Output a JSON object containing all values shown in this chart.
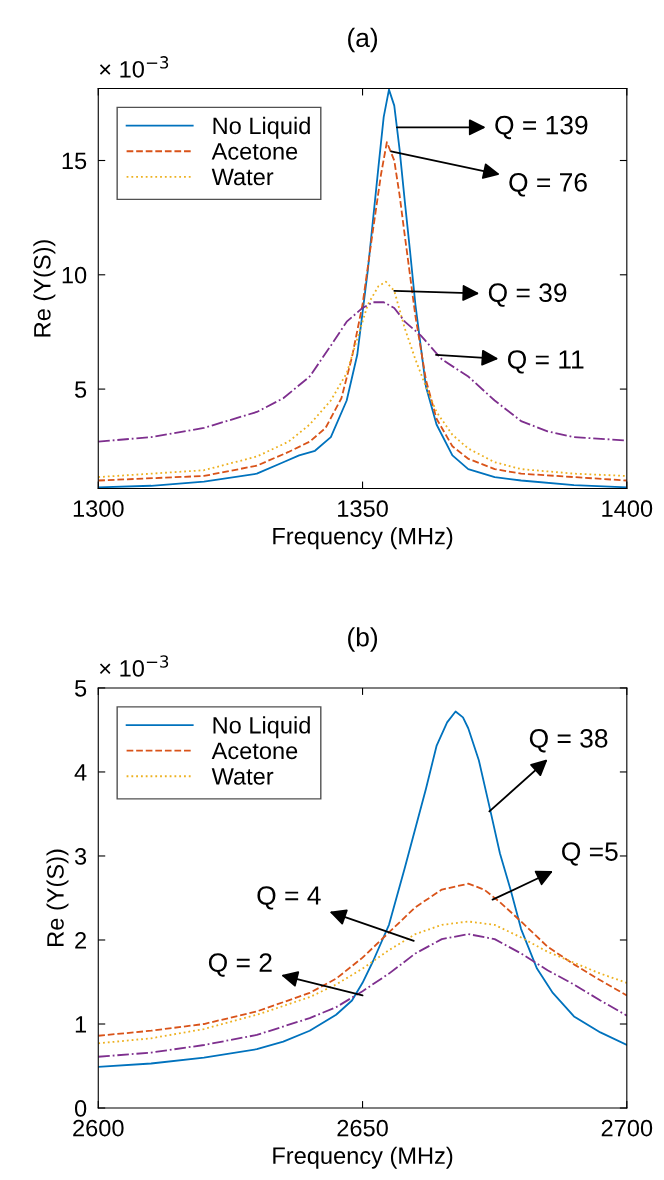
{
  "chart_data": [
    {
      "type": "line",
      "title": "(a)",
      "xlabel": "Frequency (MHz)",
      "ylabel": "Re (Y(S))",
      "xlim": [
        1300,
        1400
      ],
      "xticks": [
        1300,
        1350,
        1400
      ],
      "ylim": [
        0.65,
        18.15
      ],
      "yticks": [
        5,
        10,
        15
      ],
      "grid": false,
      "legend": "top left",
      "marker": "none",
      "annotations": [
        "× 10$^{−3}$",
        {
          "text": "Q = 139",
          "x": 1356.5,
          "y": 16.45
        },
        {
          "text": "Q = 76",
          "x": 1355.4,
          "y": 15.4
        },
        {
          "text": "Q = 39",
          "x": 1356,
          "y": 9.3
        },
        {
          "text": "Q = 11",
          "x": 1363.9,
          "y": 6.5
        }
      ],
      "series": [
        {
          "name": "No Liquid",
          "color": "#0072bd",
          "line_style": "solid",
          "x": [
            1300,
            1310,
            1320,
            1330,
            1335,
            1338,
            1341,
            1344,
            1347,
            1349,
            1351,
            1353,
            1354,
            1355,
            1356,
            1357,
            1358,
            1359,
            1360,
            1362,
            1364,
            1367,
            1370,
            1375,
            1380,
            1390,
            1400
          ],
          "values": [
            0.7,
            0.77,
            0.95,
            1.3,
            1.8,
            2.1,
            2.3,
            2.9,
            4.5,
            6.5,
            10.2,
            14.7,
            16.9,
            18.1,
            17.4,
            15.5,
            13.2,
            11.0,
            8.7,
            5.1,
            3.45,
            2.1,
            1.5,
            1.15,
            1.0,
            0.8,
            0.7
          ]
        },
        {
          "name": "Acetone",
          "color": "#d95319",
          "line_style": "dashed",
          "x": [
            1300,
            1320,
            1330,
            1336,
            1340,
            1343,
            1346,
            1348,
            1350,
            1352,
            1353.5,
            1354.6,
            1356,
            1357,
            1358,
            1360,
            1362,
            1364,
            1367,
            1370,
            1375,
            1380,
            1390,
            1400
          ],
          "values": [
            1.0,
            1.2,
            1.65,
            2.25,
            2.7,
            3.3,
            4.6,
            6.4,
            8.7,
            12.0,
            14.4,
            15.8,
            15.0,
            13.5,
            11.7,
            8.2,
            5.4,
            3.7,
            2.5,
            1.95,
            1.5,
            1.3,
            1.15,
            1.0
          ]
        },
        {
          "name": "Water",
          "color": "#edb120",
          "line_style": "dotted",
          "x": [
            1300,
            1320,
            1330,
            1336,
            1340,
            1344,
            1347,
            1349,
            1351,
            1353,
            1354.4,
            1356,
            1358,
            1360,
            1362,
            1364,
            1367,
            1370,
            1375,
            1380,
            1390,
            1400
          ],
          "values": [
            1.15,
            1.45,
            2.05,
            2.7,
            3.45,
            4.5,
            5.7,
            7.2,
            8.7,
            9.5,
            9.7,
            9.3,
            7.65,
            6.3,
            5.1,
            4.0,
            3.0,
            2.4,
            1.8,
            1.5,
            1.3,
            1.2
          ]
        },
        {
          "color": "#7e2f8e",
          "line_style": "dashdot",
          "x": [
            1300,
            1310,
            1320,
            1330,
            1335,
            1340,
            1344,
            1347,
            1350,
            1352,
            1354,
            1356,
            1358,
            1361,
            1365,
            1370,
            1375,
            1380,
            1385,
            1390,
            1400
          ],
          "values": [
            2.7,
            2.9,
            3.3,
            4.0,
            4.6,
            5.55,
            6.9,
            7.95,
            8.55,
            8.8,
            8.8,
            8.55,
            7.95,
            7.35,
            6.3,
            5.55,
            4.5,
            3.6,
            3.15,
            2.9,
            2.75
          ]
        }
      ]
    },
    {
      "type": "line",
      "title": "(b)",
      "xlabel": "Frequency (MHz)",
      "ylabel": "Re (Y(S))",
      "xlim": [
        2600,
        2700
      ],
      "xticks": [
        2600,
        2650,
        2700
      ],
      "ylim": [
        0,
        5
      ],
      "yticks": [
        0,
        1,
        2,
        3,
        4,
        5
      ],
      "grid": false,
      "legend": "top left",
      "marker": "none",
      "annotations": [
        "× 10$^{−3}$",
        {
          "text": "Q = 38",
          "x": 2674,
          "y": 3.53
        },
        {
          "text": "Q =5",
          "x": 2674.6,
          "y": 2.48
        },
        {
          "text": "Q = 4",
          "x": 2659.7,
          "y": 1.99
        },
        {
          "text": "Q = 2",
          "x": 2650,
          "y": 1.34
        }
      ],
      "series": [
        {
          "name": "No Liquid",
          "color": "#0072bd",
          "line_style": "solid",
          "x": [
            2600,
            2610,
            2620,
            2630,
            2635,
            2640,
            2645,
            2648,
            2650,
            2652,
            2655,
            2658,
            2660,
            2662,
            2664,
            2666,
            2667.6,
            2669,
            2670,
            2672,
            2674,
            2676,
            2678,
            2680,
            2683,
            2686,
            2690,
            2695,
            2700
          ],
          "values": [
            0.49,
            0.53,
            0.6,
            0.7,
            0.79,
            0.92,
            1.11,
            1.28,
            1.49,
            1.75,
            2.18,
            2.86,
            3.33,
            3.8,
            4.31,
            4.59,
            4.72,
            4.65,
            4.52,
            4.14,
            3.59,
            3.03,
            2.6,
            2.13,
            1.66,
            1.37,
            1.09,
            0.9,
            0.75
          ]
        },
        {
          "name": "Acetone",
          "color": "#d95319",
          "line_style": "dashed",
          "x": [
            2600,
            2610,
            2620,
            2630,
            2640,
            2645,
            2650,
            2655,
            2660,
            2665,
            2670,
            2673,
            2676,
            2680,
            2685,
            2690,
            2695,
            2700
          ],
          "values": [
            0.86,
            0.92,
            1.0,
            1.15,
            1.37,
            1.54,
            1.79,
            2.09,
            2.39,
            2.6,
            2.67,
            2.6,
            2.45,
            2.22,
            1.92,
            1.71,
            1.52,
            1.34
          ]
        },
        {
          "name": "Water",
          "color": "#edb120",
          "line_style": "dotted",
          "x": [
            2600,
            2610,
            2620,
            2630,
            2640,
            2645,
            2650,
            2655,
            2660,
            2665,
            2670,
            2675,
            2680,
            2685,
            2690,
            2695,
            2700
          ],
          "values": [
            0.77,
            0.83,
            0.94,
            1.11,
            1.32,
            1.47,
            1.66,
            1.88,
            2.07,
            2.18,
            2.22,
            2.18,
            2.03,
            1.86,
            1.73,
            1.6,
            1.49
          ]
        },
        {
          "color": "#7e2f8e",
          "line_style": "dashdot",
          "x": [
            2600,
            2610,
            2620,
            2630,
            2640,
            2645,
            2650,
            2655,
            2660,
            2665,
            2670,
            2675,
            2680,
            2685,
            2690,
            2695,
            2700
          ],
          "values": [
            0.61,
            0.66,
            0.75,
            0.87,
            1.07,
            1.2,
            1.39,
            1.6,
            1.84,
            2.01,
            2.07,
            2.01,
            1.84,
            1.64,
            1.47,
            1.28,
            1.1
          ]
        }
      ]
    }
  ]
}
